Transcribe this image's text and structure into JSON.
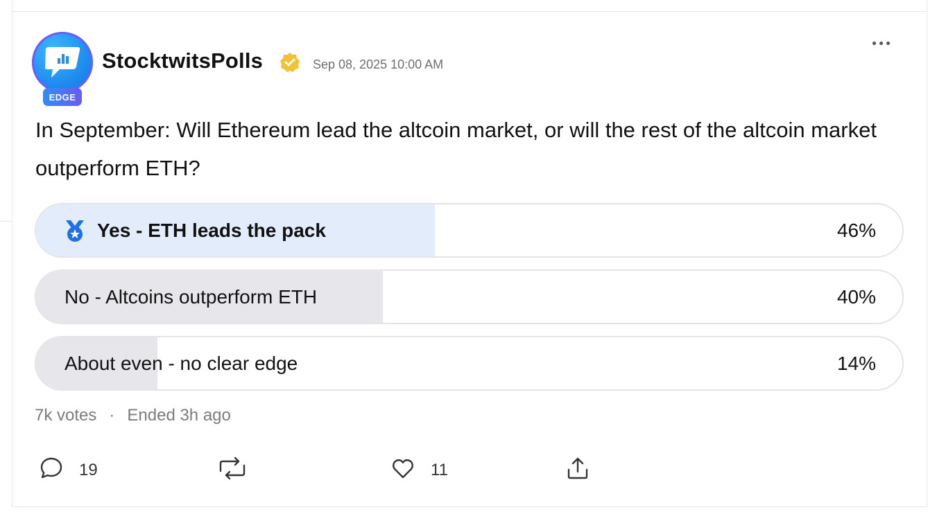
{
  "post": {
    "author": "StocktwitsPolls",
    "badge": "EDGE",
    "timestamp": "Sep 08, 2025 10:00 AM",
    "question": "In September: Will Ethereum lead the altcoin market, or will the rest of the altcoin market outperform ETH?"
  },
  "poll": {
    "options": [
      {
        "label": "Yes - ETH leads the pack",
        "percent_text": "46%",
        "fraction": 0.46,
        "winner": true
      },
      {
        "label": "No - Altcoins outperform ETH",
        "percent_text": "40%",
        "fraction": 0.4,
        "winner": false
      },
      {
        "label": "About even - no clear edge",
        "percent_text": "14%",
        "fraction": 0.14,
        "winner": false
      }
    ],
    "votes": "7k votes",
    "separator": "·",
    "status": "Ended 3h ago"
  },
  "actions": {
    "comments": "19",
    "likes": "11"
  },
  "colors": {
    "winner_fill": "#e3ecfb",
    "loser_fill": "#e7e7eb",
    "verified": "#f2c233",
    "medal": "#1e6fe8"
  },
  "icons": [
    "chart-logo-icon",
    "verified-badge-icon",
    "more-options-icon",
    "medal-icon",
    "comment-icon",
    "reshare-icon",
    "heart-icon",
    "share-icon"
  ]
}
